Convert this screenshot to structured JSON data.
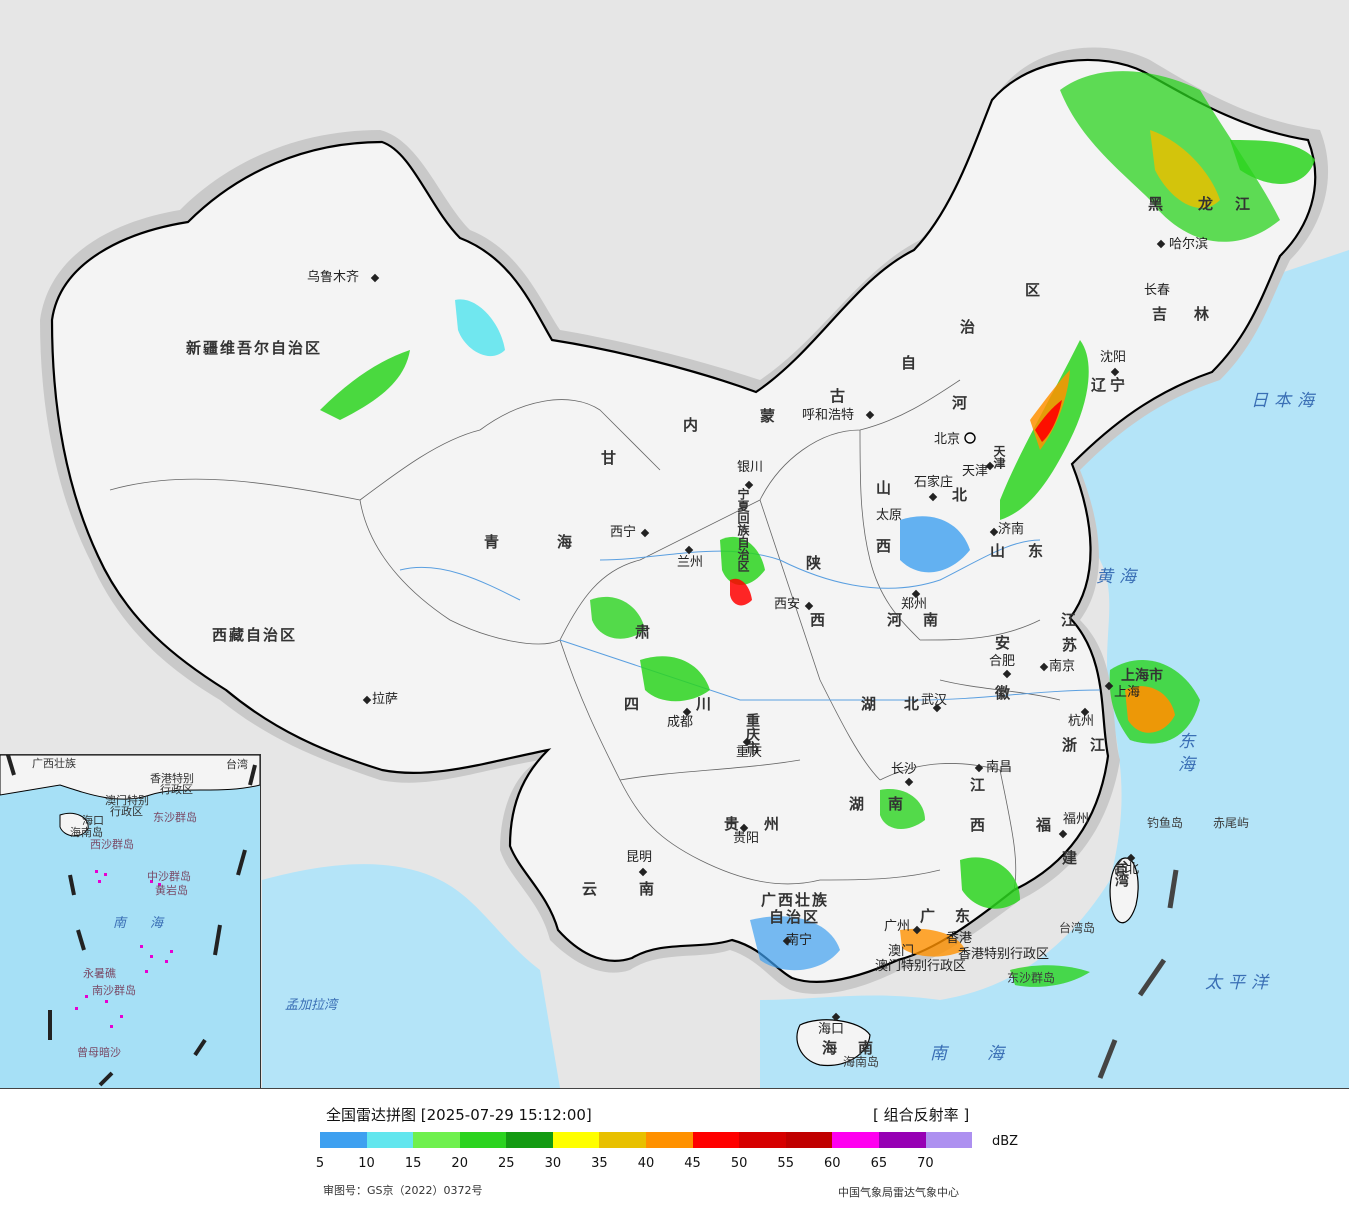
{
  "title": "全国雷达拼图 [2025-07-29 15:12:00]",
  "product": "[ 组合反射率 ]",
  "legend": {
    "unit": "dBZ",
    "colors": [
      "#3ea0f0",
      "#62e6ee",
      "#6ff04e",
      "#2bd31f",
      "#139a12",
      "#ffff00",
      "#e8c000",
      "#ff9100",
      "#ff0000",
      "#d60000",
      "#c00000",
      "#ff00f0",
      "#9700b4",
      "#ad90f0"
    ],
    "ticks": [
      "5",
      "10",
      "15",
      "20",
      "25",
      "30",
      "35",
      "40",
      "45",
      "50",
      "55",
      "60",
      "65",
      "70"
    ]
  },
  "footer": {
    "approval": "审图号：GS京（2022）0372号",
    "source": "中国气象局雷达气象中心"
  },
  "provinces": [
    "新疆维吾尔自治区",
    "西藏自治区",
    "青",
    "海",
    "甘",
    "肃",
    "内",
    "蒙",
    "古",
    "自",
    "治",
    "区",
    "宁夏回族自治区",
    "山",
    "西",
    "陕",
    "西",
    "河",
    "北",
    "河",
    "南",
    "山",
    "东",
    "江",
    "苏",
    "安",
    "徽",
    "湖",
    "北",
    "湖",
    "南",
    "江",
    "西",
    "浙",
    "江",
    "福",
    "建",
    "四",
    "川",
    "贵",
    "州",
    "云",
    "南",
    "广西壮族",
    "自治区",
    "广",
    "东",
    "海",
    "南",
    "重庆市",
    "上海市",
    "黑",
    "龙",
    "江",
    "吉",
    "林",
    "辽",
    "宁",
    "天津",
    "台湾"
  ],
  "cities": [
    "乌鲁木齐",
    "拉萨",
    "西宁",
    "兰州",
    "银川",
    "呼和浩特",
    "北京",
    "天津",
    "石家庄",
    "太原",
    "西安",
    "郑州",
    "济南",
    "南京",
    "合肥",
    "上海",
    "杭州",
    "武汉",
    "长沙",
    "南昌",
    "福州",
    "台北",
    "广州",
    "南宁",
    "海口",
    "昆明",
    "贵阳",
    "成都",
    "重庆",
    "哈尔滨",
    "长春",
    "沈阳",
    "香港",
    "澳门"
  ],
  "seas": [
    "日本海",
    "黄海",
    "东海",
    "太平洋",
    "南海",
    "孟加拉湾"
  ],
  "islands": [
    "钓鱼岛",
    "赤尾屿",
    "台湾岛",
    "东沙群岛",
    "海南岛"
  ],
  "special": [
    "香港特别行政区",
    "澳门特别行政区"
  ],
  "inset": {
    "labels": [
      "广西壮族",
      "台湾",
      "香港特别",
      "行政区",
      "澳门特别",
      "行政区",
      "海口",
      "海南岛",
      "东沙群岛",
      "西沙群岛",
      "中沙群岛",
      "黄岩岛",
      "南",
      "海",
      "永暑礁",
      "南沙群岛",
      "曾母暗沙"
    ]
  }
}
